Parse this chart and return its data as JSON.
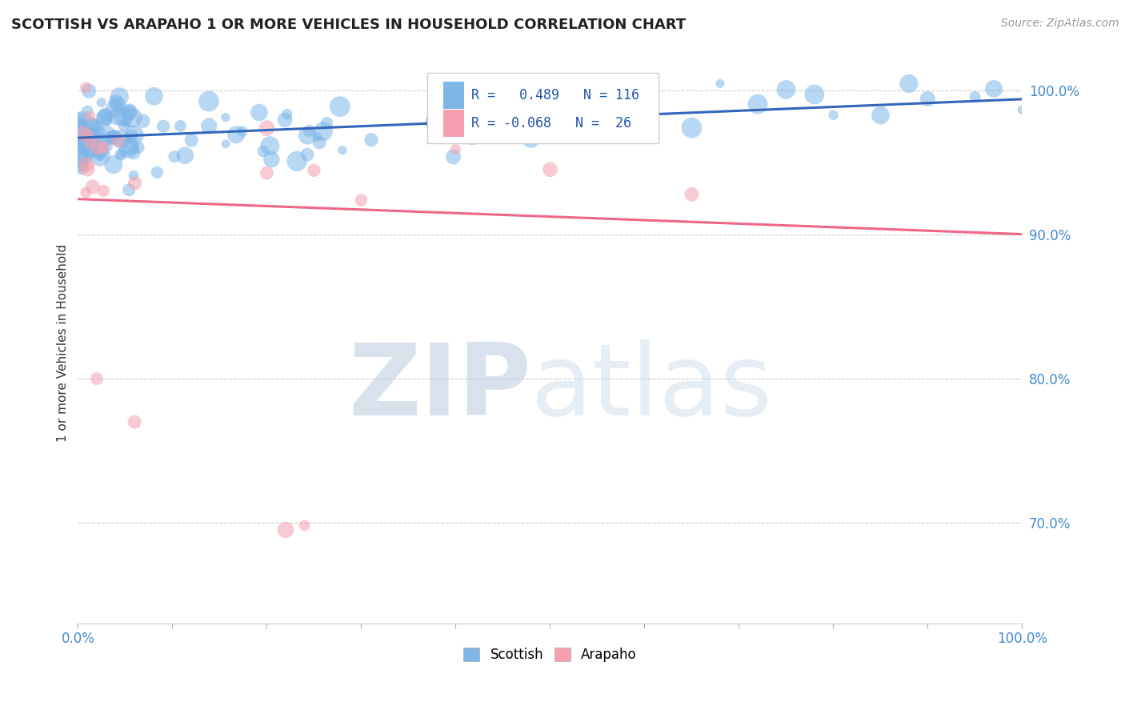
{
  "title": "SCOTTISH VS ARAPAHO 1 OR MORE VEHICLES IN HOUSEHOLD CORRELATION CHART",
  "source_text": "Source: ZipAtlas.com",
  "ylabel": "1 or more Vehicles in Household",
  "xlim": [
    0.0,
    1.0
  ],
  "ylim": [
    0.63,
    1.02
  ],
  "ytick_vals": [
    0.7,
    0.8,
    0.9,
    1.0
  ],
  "ytick_labels": [
    "70.0%",
    "80.0%",
    "90.0%",
    "100.0%"
  ],
  "background_color": "#ffffff",
  "grid_color": "#cccccc",
  "scottish_color": "#7eb6e8",
  "arapaho_color": "#f4a0b0",
  "scottish_line_color": "#3366bb",
  "arapaho_line_color": "#ee6688",
  "R_scottish": 0.489,
  "N_scottish": 116,
  "R_arapaho": -0.068,
  "N_arapaho": 26,
  "legend_label_scottish": "Scottish",
  "legend_label_arapaho": "Arapaho",
  "watermark_zip_color": "#c0cfe0",
  "watermark_atlas_color": "#c8d8e8"
}
